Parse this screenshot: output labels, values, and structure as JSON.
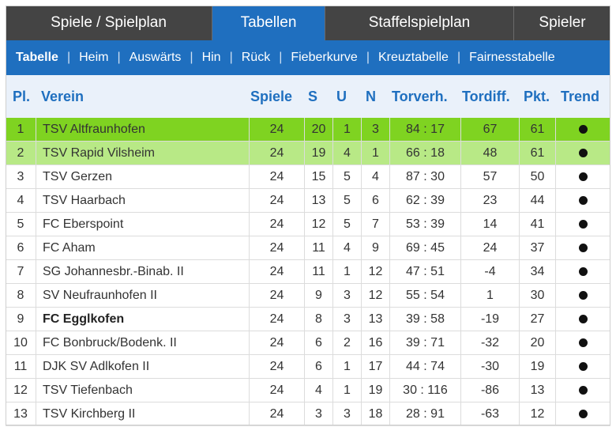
{
  "tabs": [
    {
      "label": "Spiele / Spielplan",
      "active": false
    },
    {
      "label": "Tabellen",
      "active": true
    },
    {
      "label": "Staffelspielplan",
      "active": false
    },
    {
      "label": "Spieler",
      "active": false
    }
  ],
  "subnav": [
    "Tabelle",
    "Heim",
    "Auswärts",
    "Hin",
    "Rück",
    "Fieberkurve",
    "Kreuztabelle",
    "Fairnesstabelle"
  ],
  "subnav_active": "Tabelle",
  "headers": {
    "pl": "Pl.",
    "verein": "Verein",
    "spiele": "Spiele",
    "s": "S",
    "u": "U",
    "n": "N",
    "torverh": "Torverh.",
    "tordiff": "Tordiff.",
    "pkt": "Pkt.",
    "trend": "Trend"
  },
  "rows": [
    {
      "pl": "1",
      "verein": "TSV Altfraunhofen",
      "spiele": "24",
      "s": "20",
      "u": "1",
      "n": "3",
      "torverh": "84 : 17",
      "tordiff": "67",
      "pkt": "61"
    },
    {
      "pl": "2",
      "verein": "TSV Rapid Vilsheim",
      "spiele": "24",
      "s": "19",
      "u": "4",
      "n": "1",
      "torverh": "66 : 18",
      "tordiff": "48",
      "pkt": "61"
    },
    {
      "pl": "3",
      "verein": "TSV Gerzen",
      "spiele": "24",
      "s": "15",
      "u": "5",
      "n": "4",
      "torverh": "87 : 30",
      "tordiff": "57",
      "pkt": "50"
    },
    {
      "pl": "4",
      "verein": "TSV Haarbach",
      "spiele": "24",
      "s": "13",
      "u": "5",
      "n": "6",
      "torverh": "62 : 39",
      "tordiff": "23",
      "pkt": "44"
    },
    {
      "pl": "5",
      "verein": "FC Eberspoint",
      "spiele": "24",
      "s": "12",
      "u": "5",
      "n": "7",
      "torverh": "53 : 39",
      "tordiff": "14",
      "pkt": "41"
    },
    {
      "pl": "6",
      "verein": "FC Aham",
      "spiele": "24",
      "s": "11",
      "u": "4",
      "n": "9",
      "torverh": "69 : 45",
      "tordiff": "24",
      "pkt": "37"
    },
    {
      "pl": "7",
      "verein": "SG Johannesbr.-Binab. II",
      "spiele": "24",
      "s": "11",
      "u": "1",
      "n": "12",
      "torverh": "47 : 51",
      "tordiff": "-4",
      "pkt": "34"
    },
    {
      "pl": "8",
      "verein": "SV Neufraunhofen II",
      "spiele": "24",
      "s": "9",
      "u": "3",
      "n": "12",
      "torverh": "55 : 54",
      "tordiff": "1",
      "pkt": "30"
    },
    {
      "pl": "9",
      "verein": "FC Egglkofen",
      "spiele": "24",
      "s": "8",
      "u": "3",
      "n": "13",
      "torverh": "39 : 58",
      "tordiff": "-19",
      "pkt": "27",
      "highlight": true
    },
    {
      "pl": "10",
      "verein": "FC Bonbruck/Bodenk. II",
      "spiele": "24",
      "s": "6",
      "u": "2",
      "n": "16",
      "torverh": "39 : 71",
      "tordiff": "-32",
      "pkt": "20"
    },
    {
      "pl": "11",
      "verein": "DJK SV Adlkofen II",
      "spiele": "24",
      "s": "6",
      "u": "1",
      "n": "17",
      "torverh": "44 : 74",
      "tordiff": "-30",
      "pkt": "19"
    },
    {
      "pl": "12",
      "verein": "TSV Tiefenbach",
      "spiele": "24",
      "s": "4",
      "u": "1",
      "n": "19",
      "torverh": "30 : 116",
      "tordiff": "-86",
      "pkt": "13"
    },
    {
      "pl": "13",
      "verein": "TSV Kirchberg II",
      "spiele": "24",
      "s": "3",
      "u": "3",
      "n": "18",
      "torverh": "28 : 91",
      "tordiff": "-63",
      "pkt": "12"
    }
  ],
  "colors": {
    "accent": "#1f6fbf",
    "tabbar": "#444444",
    "rank1": "#7fd321",
    "rank2": "#b8e986"
  },
  "trend_icon": "dot-icon"
}
